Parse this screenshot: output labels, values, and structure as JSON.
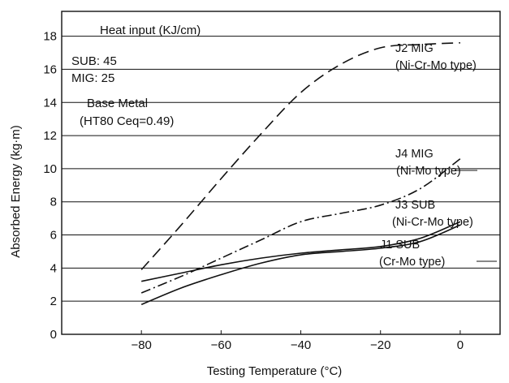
{
  "chart_data": {
    "type": "line",
    "xlabel": "Testing Temperature (°C)",
    "ylabel": "Absorbed Energy (kg·m)",
    "xlim": [
      -100,
      10
    ],
    "ylim": [
      0,
      19.5
    ],
    "x_ticks": [
      -80,
      -60,
      -40,
      -20,
      0
    ],
    "x_tick_labels": [
      "−80",
      "−60",
      "−40",
      "−20",
      "0"
    ],
    "y_ticks": [
      0,
      2,
      4,
      6,
      8,
      10,
      12,
      14,
      16,
      18
    ],
    "y_tick_labels": [
      "0",
      "2",
      "4",
      "6",
      "8",
      "10",
      "12",
      "14",
      "16",
      "18"
    ],
    "grid": "horizontal",
    "annotations": [
      "Heat input (KJ/cm)",
      "SUB: 45",
      "MIG: 25",
      "Base Metal",
      "(HT80 Ceq=0.49)"
    ],
    "series": [
      {
        "name": "J2 MIG",
        "subtitle": "(Ni-Cr-Mo type)",
        "dash": "14,7",
        "x": [
          -80,
          -70,
          -60,
          -50,
          -40,
          -30,
          -20,
          -10,
          0
        ],
        "y": [
          3.9,
          6.6,
          9.4,
          12.1,
          14.6,
          16.3,
          17.3,
          17.5,
          17.6
        ]
      },
      {
        "name": "J4 MIG",
        "subtitle": "(Ni-Mo type)",
        "dash": "12,4,2,4",
        "x": [
          -80,
          -70,
          -60,
          -50,
          -40,
          -30,
          -20,
          -10,
          0
        ],
        "y": [
          2.5,
          3.5,
          4.6,
          5.7,
          6.8,
          7.3,
          7.8,
          8.8,
          10.6
        ]
      },
      {
        "name": "J3 SUB",
        "subtitle": "(Ni-Cr-Mo type)",
        "dash": "",
        "x": [
          -80,
          -70,
          -60,
          -50,
          -40,
          -30,
          -20,
          -10,
          0
        ],
        "y": [
          3.2,
          3.7,
          4.2,
          4.6,
          4.9,
          5.1,
          5.3,
          5.8,
          6.8
        ]
      },
      {
        "name": "J1 SUB",
        "subtitle": "(Cr-Mo type)",
        "dash": "",
        "x": [
          -80,
          -70,
          -60,
          -50,
          -40,
          -30,
          -20,
          -10,
          0
        ],
        "y": [
          1.8,
          2.8,
          3.6,
          4.3,
          4.8,
          5.0,
          5.2,
          5.6,
          6.6
        ]
      }
    ]
  }
}
